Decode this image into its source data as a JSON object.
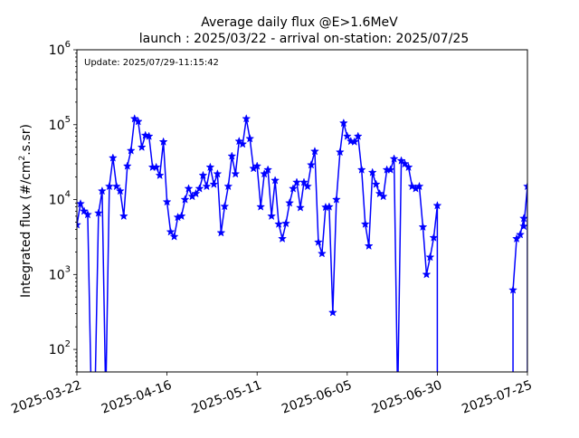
{
  "figure": {
    "title_line1": "Average daily flux @E>1.6MeV",
    "title_line2": "launch : 2025/03/22 - arrival on-station: 2025/07/25",
    "update_label": "Update: 2025/07/29-11:15:42"
  },
  "chart_data": {
    "type": "line",
    "title": "Average daily flux @E>1.6MeV\nlaunch : 2025/03/22 - arrival on-station: 2025/07/25",
    "annotation": "Update: 2025/07/29-11:15:42",
    "xlabel": "",
    "ylabel": "Integrated flux (#/cm².s.sr)",
    "ylabel_parts": {
      "before": "Integrated flux (#/cm",
      "sup": "2",
      "after": ".s.sr)"
    },
    "x_range": [
      "2025-03-22",
      "2025-07-25"
    ],
    "y_range": [
      50,
      1000000
    ],
    "y_scale": "log",
    "grid": false,
    "x_ticks": [
      "2025-03-22",
      "2025-04-16",
      "2025-05-11",
      "2025-06-05",
      "2025-06-30",
      "2025-07-25"
    ],
    "y_ticks": [
      {
        "value": 100,
        "base": "10",
        "exp": "2"
      },
      {
        "value": 1000,
        "base": "10",
        "exp": "3"
      },
      {
        "value": 10000,
        "base": "10",
        "exp": "4"
      },
      {
        "value": 100000,
        "base": "10",
        "exp": "5"
      },
      {
        "value": 1000000,
        "base": "10",
        "exp": "6"
      }
    ],
    "line_color": "#0000ff",
    "marker": "star",
    "series": [
      {
        "x": [
          "2025-03-22",
          "2025-03-23",
          "2025-03-24",
          "2025-03-25",
          "2025-03-26",
          "2025-03-27",
          "2025-03-28",
          "2025-03-29",
          "2025-03-30",
          "2025-03-31",
          "2025-04-01",
          "2025-04-02",
          "2025-04-03",
          "2025-04-04",
          "2025-04-05",
          "2025-04-06",
          "2025-04-07",
          "2025-04-08",
          "2025-04-09",
          "2025-04-10",
          "2025-04-11",
          "2025-04-12",
          "2025-04-13",
          "2025-04-14",
          "2025-04-15",
          "2025-04-16",
          "2025-04-17",
          "2025-04-18",
          "2025-04-19",
          "2025-04-20",
          "2025-04-21",
          "2025-04-22",
          "2025-04-23",
          "2025-04-24",
          "2025-04-25",
          "2025-04-26",
          "2025-04-27",
          "2025-04-28",
          "2025-04-29",
          "2025-04-30",
          "2025-05-01",
          "2025-05-02",
          "2025-05-03",
          "2025-05-04",
          "2025-05-05",
          "2025-05-06",
          "2025-05-07",
          "2025-05-08",
          "2025-05-09",
          "2025-05-10",
          "2025-05-11",
          "2025-05-12",
          "2025-05-13",
          "2025-05-14",
          "2025-05-15",
          "2025-05-16",
          "2025-05-17",
          "2025-05-18",
          "2025-05-19",
          "2025-05-20",
          "2025-05-21",
          "2025-05-22",
          "2025-05-23",
          "2025-05-24",
          "2025-05-25",
          "2025-05-26",
          "2025-05-27",
          "2025-05-28",
          "2025-05-29",
          "2025-05-30",
          "2025-05-31",
          "2025-06-01",
          "2025-06-02",
          "2025-06-03",
          "2025-06-04",
          "2025-06-05",
          "2025-06-06",
          "2025-06-07",
          "2025-06-08",
          "2025-06-09",
          "2025-06-10",
          "2025-06-11",
          "2025-06-12",
          "2025-06-13",
          "2025-06-14",
          "2025-06-15",
          "2025-06-16",
          "2025-06-17",
          "2025-06-18",
          "2025-06-19",
          "2025-06-20",
          "2025-06-21",
          "2025-06-22",
          "2025-06-23",
          "2025-06-24",
          "2025-06-25",
          "2025-06-26",
          "2025-06-27",
          "2025-06-28",
          "2025-06-29",
          "2025-06-30",
          "2025-07-01",
          "2025-07-02",
          "2025-07-03",
          "2025-07-04",
          "2025-07-05",
          "2025-07-06",
          "2025-07-07",
          "2025-07-08",
          "2025-07-09",
          "2025-07-10",
          "2025-07-11",
          "2025-07-12",
          "2025-07-13",
          "2025-07-14",
          "2025-07-15",
          "2025-07-16",
          "2025-07-17",
          "2025-07-18",
          "2025-07-19",
          "2025-07-20",
          "2025-07-21",
          "2025-07-22",
          "2025-07-23",
          "2025-07-24",
          "2025-07-25"
        ],
        "y": [
          4600,
          8800,
          7000,
          6300,
          0,
          0,
          6600,
          13000,
          0,
          15000,
          36000,
          15000,
          13000,
          6000,
          28000,
          45000,
          120000,
          110000,
          50000,
          72000,
          70000,
          27000,
          27000,
          21000,
          59000,
          9300,
          3700,
          3200,
          5800,
          6000,
          10000,
          14000,
          11000,
          12000,
          14000,
          21000,
          15000,
          27000,
          16000,
          22000,
          3600,
          8100,
          15000,
          38000,
          22000,
          60000,
          55000,
          120000,
          65000,
          26000,
          28000,
          8000,
          22000,
          25000,
          6000,
          18000,
          4700,
          3000,
          4800,
          9000,
          14000,
          17000,
          7800,
          17000,
          15000,
          29000,
          44000,
          2700,
          1900,
          7900,
          8000,
          310,
          10000,
          43000,
          105000,
          70000,
          60000,
          59000,
          70000,
          25000,
          4700,
          2400,
          23000,
          16000,
          12000,
          11000,
          25000,
          25000,
          35000,
          0,
          33000,
          30000,
          27000,
          15000,
          14000,
          15000,
          4300,
          1000,
          1700,
          3100,
          8300,
          9000,
          4400,
          8000,
          2700,
          0,
          0,
          0,
          0,
          0,
          0,
          0,
          0,
          0,
          0,
          0,
          0,
          0,
          0,
          0,
          0,
          0,
          0,
          0,
          0,
          0
        ],
        "note_zero": "0 = zero/no-flux value plotted as a drop below the axis",
        "tail": [
          {
            "x": "2025-07-21",
            "y": 620
          },
          {
            "x": "2025-07-22",
            "y": 3000
          },
          {
            "x": "2025-07-23",
            "y": 3400
          },
          {
            "x": "2025-07-24",
            "y": 5600
          },
          {
            "x": "2025-07-24",
            "y": 4400
          },
          {
            "x": "2025-07-25",
            "y": 15000
          }
        ],
        "gap_after": "2025-06-30"
      }
    ]
  }
}
